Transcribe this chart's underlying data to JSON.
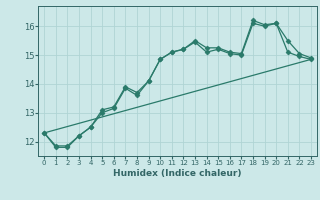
{
  "title": "",
  "xlabel": "Humidex (Indice chaleur)",
  "bg_color": "#cce8e8",
  "grid_color": "#b0d4d4",
  "line_color": "#2a7a6a",
  "xlim": [
    -0.5,
    23.5
  ],
  "ylim": [
    11.5,
    16.7
  ],
  "xticks": [
    0,
    1,
    2,
    3,
    4,
    5,
    6,
    7,
    8,
    9,
    10,
    11,
    12,
    13,
    14,
    15,
    16,
    17,
    18,
    19,
    20,
    21,
    22,
    23
  ],
  "yticks": [
    12,
    13,
    14,
    15,
    16
  ],
  "line1_x": [
    0,
    1,
    2,
    3,
    4,
    5,
    6,
    7,
    8,
    9,
    10,
    11,
    12,
    13,
    14,
    15,
    16,
    17,
    18,
    19,
    20,
    21,
    22,
    23
  ],
  "line1_y": [
    12.3,
    11.8,
    11.8,
    12.2,
    12.5,
    13.1,
    13.2,
    13.9,
    13.7,
    14.1,
    14.85,
    15.1,
    15.2,
    15.5,
    15.25,
    15.25,
    15.1,
    15.05,
    16.2,
    16.05,
    16.1,
    15.5,
    15.05,
    14.9
  ],
  "line2_x": [
    0,
    1,
    2,
    3,
    4,
    5,
    6,
    7,
    8,
    9,
    10,
    11,
    12,
    13,
    14,
    15,
    16,
    17,
    18,
    19,
    20,
    21,
    22,
    23
  ],
  "line2_y": [
    12.3,
    11.85,
    11.85,
    12.2,
    12.5,
    13.0,
    13.15,
    13.85,
    13.6,
    14.1,
    14.85,
    15.1,
    15.2,
    15.45,
    15.1,
    15.2,
    15.05,
    15.0,
    16.1,
    16.0,
    16.1,
    15.1,
    14.95,
    14.85
  ],
  "line3_x": [
    0,
    23
  ],
  "line3_y": [
    12.3,
    14.85
  ]
}
